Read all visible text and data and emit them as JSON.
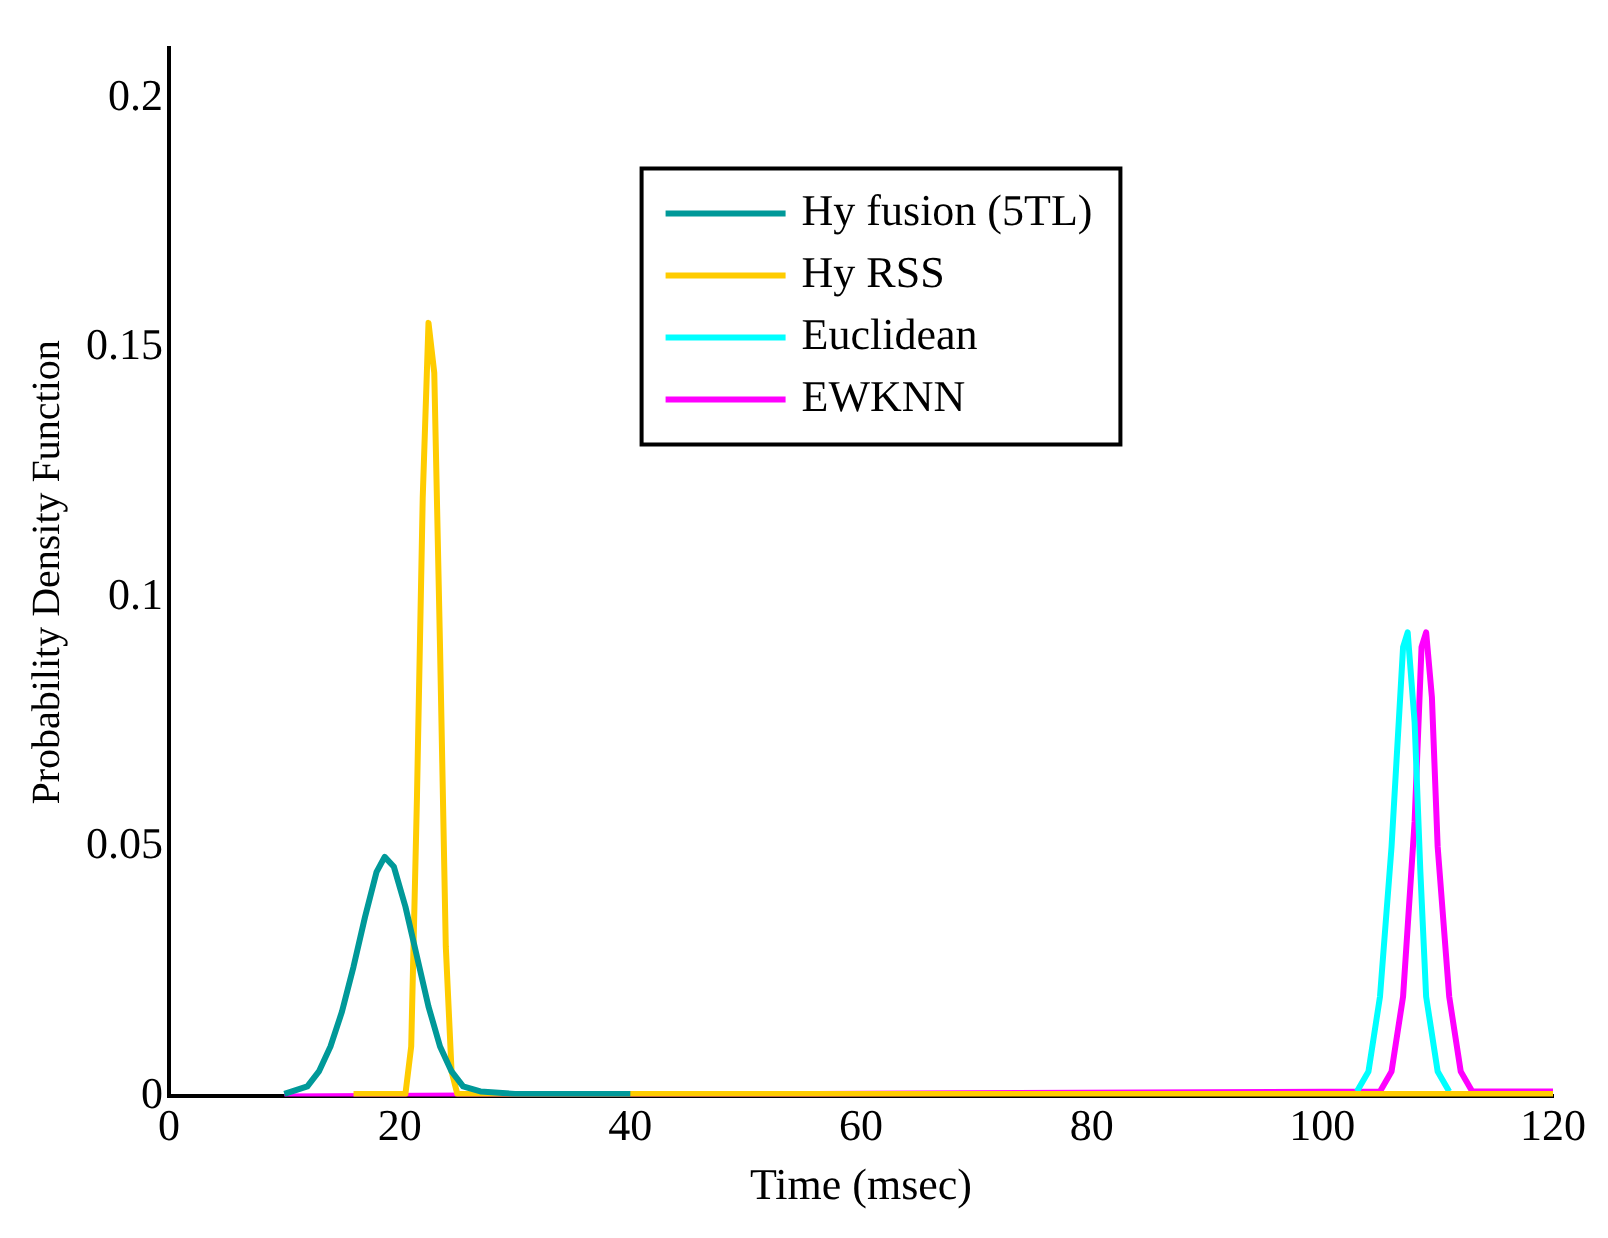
{
  "chart_data": {
    "type": "line",
    "xlabel": "Time (msec)",
    "ylabel": "Probability Density Function",
    "xlim": [
      0,
      120
    ],
    "xticks": [
      0,
      20,
      40,
      60,
      80,
      100,
      120
    ],
    "ylim": [
      0,
      0.21
    ],
    "yticks": [
      0,
      0.05,
      0.1,
      0.15,
      0.2
    ],
    "grid": false,
    "legend": "top",
    "marker": "none",
    "line_style": "solid",
    "series": [
      {
        "name": "Hy fusion (5TL)",
        "color": "#009999",
        "x": [
          10,
          12,
          13,
          14,
          15,
          16,
          17,
          18,
          18.7,
          19.5,
          20.5,
          21.5,
          22.5,
          23.5,
          24.5,
          25.5,
          27,
          30,
          40
        ],
        "values": [
          0.0005,
          0.002,
          0.005,
          0.01,
          0.017,
          0.026,
          0.036,
          0.045,
          0.048,
          0.046,
          0.038,
          0.028,
          0.018,
          0.01,
          0.005,
          0.002,
          0.001,
          0.0005,
          0.0005
        ]
      },
      {
        "name": "Hy RSS",
        "color": "#ffcc00",
        "x": [
          16,
          20.5,
          21,
          21.5,
          22,
          22.5,
          23,
          23.5,
          24,
          24.5,
          25,
          120
        ],
        "values": [
          0.0005,
          0.0005,
          0.01,
          0.06,
          0.12,
          0.155,
          0.145,
          0.09,
          0.03,
          0.005,
          0.0005,
          0.0005
        ]
      },
      {
        "name": "Euclidean",
        "color": "#00ffff",
        "x": [
          103,
          104,
          105,
          106,
          107,
          107.4,
          108,
          108.5,
          109,
          110,
          111
        ],
        "values": [
          0.001,
          0.005,
          0.02,
          0.05,
          0.09,
          0.093,
          0.075,
          0.045,
          0.02,
          0.005,
          0.001
        ]
      },
      {
        "name": "EWKNN",
        "color": "#ff00ff",
        "x": [
          10,
          105,
          106,
          107,
          108,
          108.6,
          109,
          109.5,
          110,
          111,
          112,
          113,
          120
        ],
        "values": [
          0,
          0.001,
          0.005,
          0.02,
          0.055,
          0.09,
          0.093,
          0.08,
          0.05,
          0.02,
          0.005,
          0.001,
          0.001
        ]
      }
    ]
  }
}
